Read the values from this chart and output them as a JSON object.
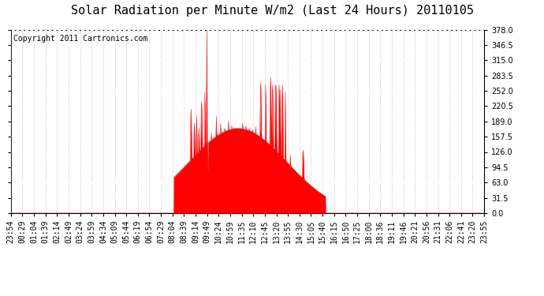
{
  "title": "Solar Radiation per Minute W/m2 (Last 24 Hours) 20110105",
  "copyright_text": "Copyright 2011 Cartronics.com",
  "y_min": 0.0,
  "y_max": 378.0,
  "y_ticks": [
    0.0,
    31.5,
    63.0,
    94.5,
    126.0,
    157.5,
    189.0,
    220.5,
    252.0,
    283.5,
    315.0,
    346.5,
    378.0
  ],
  "fill_color": "#FF0000",
  "line_color": "#FF0000",
  "baseline_color": "#FF0000",
  "grid_color_h": "#FFFFFF",
  "grid_color_v": "#AAAAAA",
  "background_color": "#FFFFFF",
  "border_color": "#000000",
  "title_fontsize": 11,
  "copyright_fontsize": 7,
  "tick_fontsize": 7,
  "x_labels": [
    "23:54",
    "00:29",
    "01:04",
    "01:39",
    "02:14",
    "02:49",
    "03:24",
    "03:59",
    "04:34",
    "05:09",
    "05:44",
    "06:19",
    "06:54",
    "07:29",
    "08:04",
    "08:39",
    "09:14",
    "09:49",
    "10:24",
    "10:59",
    "11:35",
    "12:10",
    "12:45",
    "13:20",
    "13:55",
    "14:30",
    "15:05",
    "15:40",
    "16:15",
    "16:50",
    "17:25",
    "18:00",
    "18:36",
    "19:11",
    "19:46",
    "20:21",
    "20:56",
    "21:31",
    "22:06",
    "22:41",
    "23:20",
    "23:55"
  ]
}
